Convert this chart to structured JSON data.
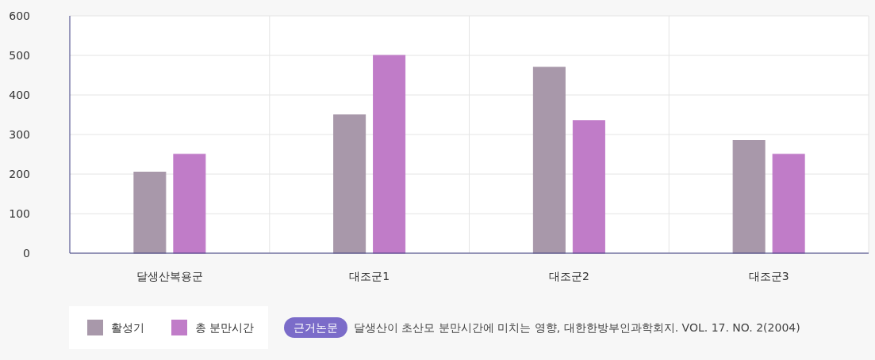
{
  "chart_data": {
    "type": "bar",
    "categories": [
      "달생산복용군",
      "대조군1",
      "대조군2",
      "대조군3"
    ],
    "series": [
      {
        "name": "활성기",
        "color": "#a898aa",
        "values": [
          205,
          350,
          470,
          285
        ]
      },
      {
        "name": "총 분만시간",
        "color": "#c07cc8",
        "values": [
          250,
          500,
          335,
          250
        ]
      }
    ],
    "ylim": [
      0,
      600
    ],
    "yticks": [
      0,
      100,
      200,
      300,
      400,
      500,
      600
    ],
    "grid": true,
    "legend": "bottom left",
    "annotations": [
      "근거논문",
      "달생산이 초산모 분만시간에 미치는 영향, 대한한방부인과학회지. VOL. 17. NO. 2(2004)"
    ]
  }
}
